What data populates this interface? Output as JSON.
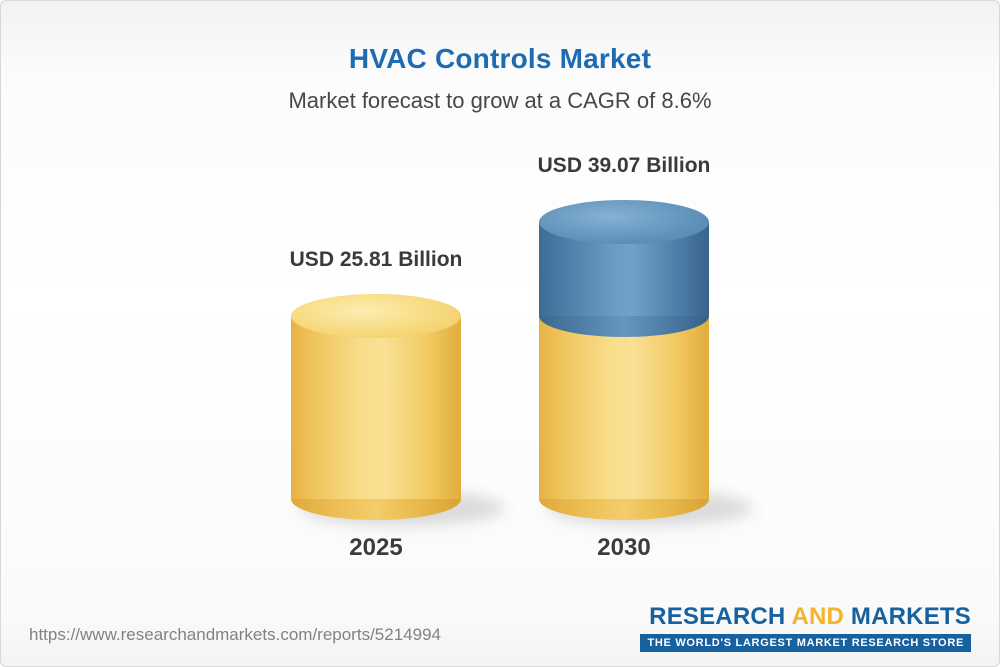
{
  "header": {
    "title": "HVAC Controls Market",
    "subtitle": "Market forecast to grow at a CAGR of 8.6%"
  },
  "chart_data": {
    "type": "bar",
    "title": "HVAC Controls Market",
    "subtitle": "Market forecast to grow at a CAGR of 8.6%",
    "unit": "USD Billion",
    "cagr": "8.6%",
    "categories": [
      "2025",
      "2030"
    ],
    "values": [
      25.81,
      39.07
    ],
    "value_labels": [
      "USD 25.81 Billion",
      "USD 39.07 Billion"
    ],
    "segments_2030": {
      "base": 25.81,
      "growth": 13.26
    },
    "legend": "none",
    "grid": false,
    "bar_style": "3d-cylinder",
    "colors": {
      "bar_base_yellow": "#F3CF6A",
      "bar_growth_blue": "#5586AF",
      "title_blue": "#1D6CB2",
      "label_dark": "#3A3A3A"
    }
  },
  "footer": {
    "url": "https://www.researchandmarkets.com/reports/5214994",
    "logo": {
      "word1": "RESEARCH",
      "word2": "AND",
      "word3": "MARKETS",
      "tagline": "THE WORLD'S LARGEST MARKET RESEARCH STORE",
      "logo_blue": "#16619E",
      "logo_yellow": "#F2B42D"
    }
  }
}
